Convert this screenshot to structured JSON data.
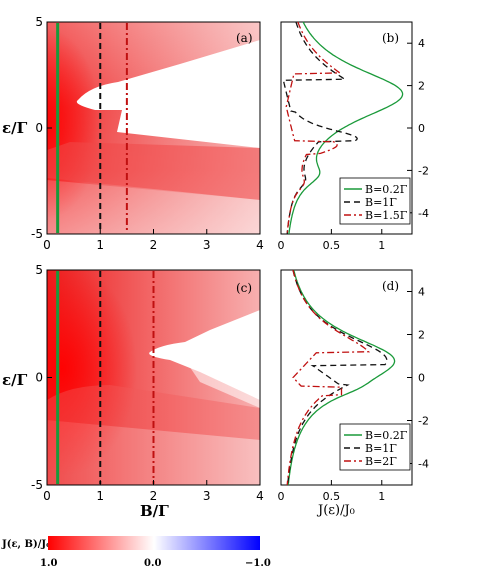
{
  "chart_data": [
    {
      "id": "a",
      "type": "heatmap",
      "panel_label": "(a)",
      "xlabel": "",
      "ylabel": "ε/Γ",
      "xlim": [
        0,
        4
      ],
      "ylim": [
        -5,
        5
      ],
      "xticks": [
        "0",
        "1",
        "2",
        "3",
        "4"
      ],
      "yticks": [
        "-5",
        "0",
        "5"
      ],
      "vlines": [
        {
          "x": 0.2,
          "style": "solid",
          "color": "#1a9a3a"
        },
        {
          "x": 1.0,
          "style": "dashed",
          "color": "#111111"
        },
        {
          "x": 1.5,
          "style": "dashdot",
          "color": "#c01010"
        }
      ]
    },
    {
      "id": "b",
      "type": "line",
      "panel_label": "(b)",
      "xlabel": "",
      "xlim": [
        0,
        1.3
      ],
      "ylim": [
        -5,
        5
      ],
      "xticks": [
        "0",
        "0.5",
        "1"
      ],
      "yticks": [
        "-4",
        "-2",
        "0",
        "2",
        "4"
      ],
      "series": [
        {
          "name": "B=0.2Γ",
          "style": "solid",
          "color": "#1a9a3a"
        },
        {
          "name": "B=1Γ",
          "style": "dashed",
          "color": "#111111"
        },
        {
          "name": "B=1.5Γ",
          "style": "dashdot",
          "color": "#c01010"
        }
      ]
    },
    {
      "id": "c",
      "type": "heatmap",
      "panel_label": "(c)",
      "xlabel": "B/Γ",
      "ylabel": "ε/Γ",
      "xlim": [
        0,
        4
      ],
      "ylim": [
        -5,
        5
      ],
      "xticks": [
        "0",
        "1",
        "2",
        "3",
        "4"
      ],
      "yticks": [
        "-5",
        "0",
        "5"
      ],
      "vlines": [
        {
          "x": 0.2,
          "style": "solid",
          "color": "#1a9a3a"
        },
        {
          "x": 1.0,
          "style": "dashed",
          "color": "#111111"
        },
        {
          "x": 2.0,
          "style": "dashdot",
          "color": "#c01010"
        }
      ]
    },
    {
      "id": "d",
      "type": "line",
      "panel_label": "(d)",
      "xlabel": "J(ε)/J₀",
      "xlim": [
        0,
        1.3
      ],
      "ylim": [
        -5,
        5
      ],
      "xticks": [
        "0",
        "0.5",
        "1"
      ],
      "yticks": [
        "-4",
        "-2",
        "0",
        "2",
        "4"
      ],
      "series": [
        {
          "name": "B=0.2Γ",
          "style": "solid",
          "color": "#1a9a3a"
        },
        {
          "name": "B=1Γ",
          "style": "dashed",
          "color": "#111111"
        },
        {
          "name": "B=2Γ",
          "style": "dashdot",
          "color": "#c01010"
        }
      ]
    }
  ],
  "colorbar": {
    "label": "J(ε, B)/J₀",
    "ticks": [
      "1.0",
      "0.0",
      "−1.0"
    ],
    "range": [
      1.0,
      -1.0
    ],
    "colors": [
      "#ff0000",
      "#ffffff",
      "#0000ff"
    ]
  }
}
